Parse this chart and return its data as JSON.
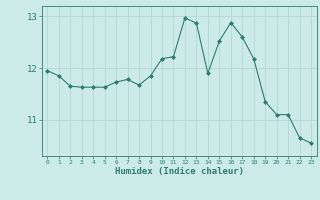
{
  "x": [
    0,
    1,
    2,
    3,
    4,
    5,
    6,
    7,
    8,
    9,
    10,
    11,
    12,
    13,
    14,
    15,
    16,
    17,
    18,
    19,
    20,
    21,
    22,
    23
  ],
  "y": [
    11.95,
    11.85,
    11.65,
    11.63,
    11.63,
    11.63,
    11.73,
    11.78,
    11.67,
    11.85,
    12.18,
    12.22,
    12.97,
    12.87,
    11.9,
    12.52,
    12.88,
    12.6,
    12.18,
    11.35,
    11.1,
    11.1,
    10.65,
    10.55
  ],
  "xlabel": "Humidex (Indice chaleur)",
  "ylim": [
    10.3,
    13.2
  ],
  "xlim": [
    -0.5,
    23.5
  ],
  "yticks": [
    11,
    12,
    13
  ],
  "xticks": [
    0,
    1,
    2,
    3,
    4,
    5,
    6,
    7,
    8,
    9,
    10,
    11,
    12,
    13,
    14,
    15,
    16,
    17,
    18,
    19,
    20,
    21,
    22,
    23
  ],
  "line_color": "#2e7d6e",
  "marker_color": "#2e7d6e",
  "bg_color": "#cceae8",
  "plot_bg_color": "#cceae8",
  "grid_color": "#afd4d0",
  "axis_color": "#2e7d6e",
  "tick_label_color": "#2e7d6e",
  "xlabel_color": "#2e7d6e",
  "figsize": [
    3.2,
    2.0
  ],
  "dpi": 100
}
